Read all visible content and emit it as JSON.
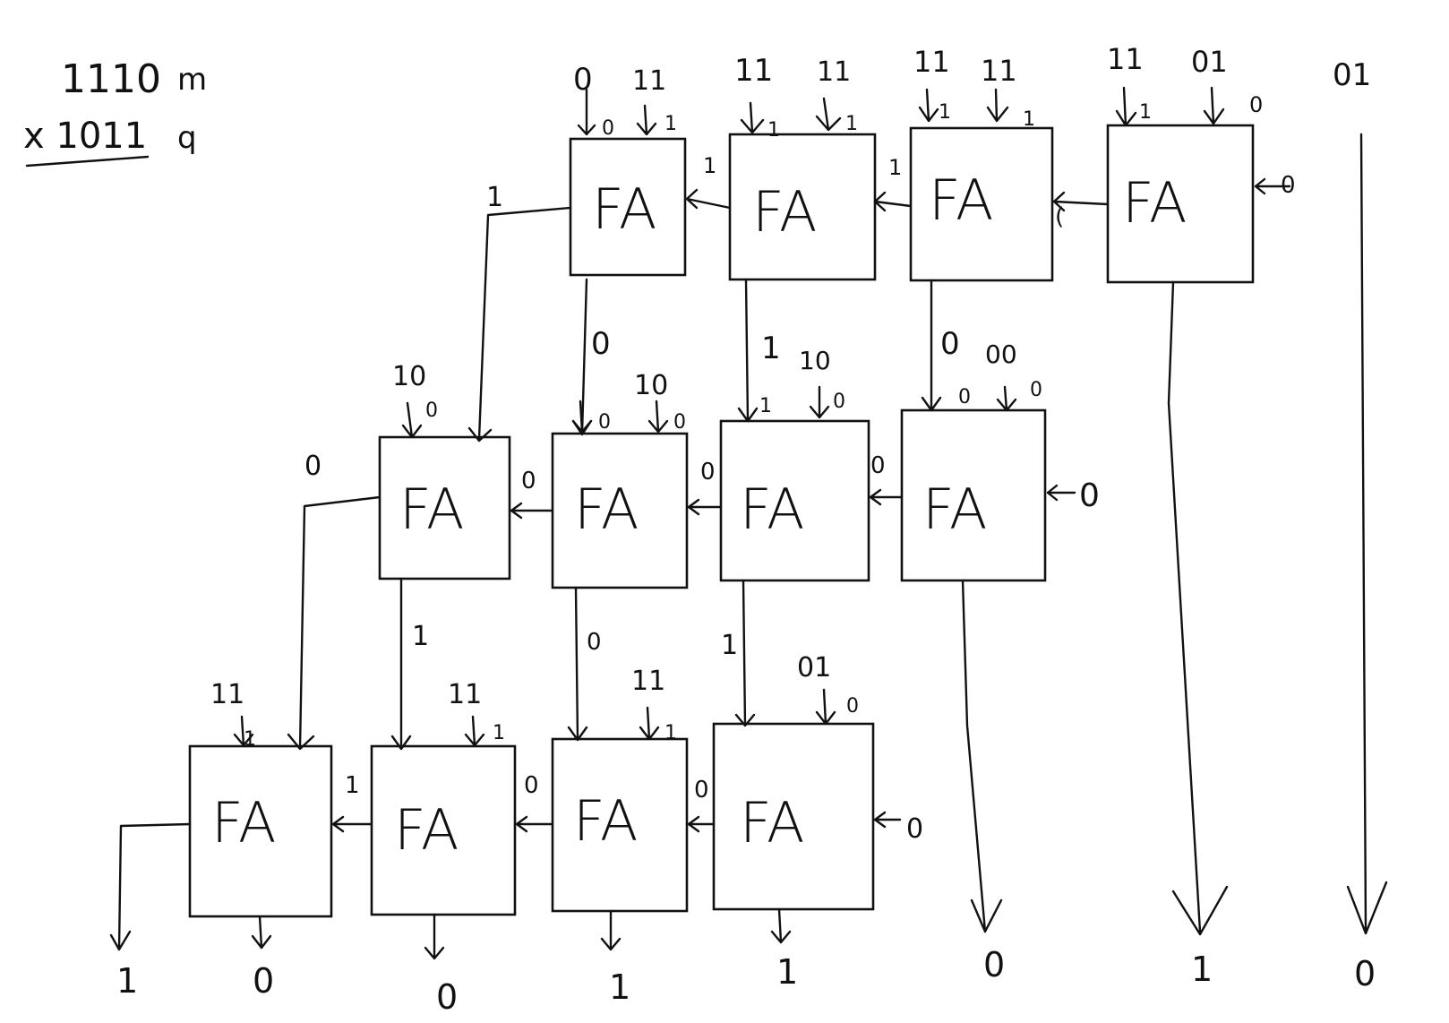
{
  "header": {
    "multiplicand": "1110",
    "multiplicand_tag": "m",
    "multiplier": "x 1011",
    "multiplier_tag": "q"
  },
  "fa_label": "FA",
  "row1": {
    "cells": [
      {
        "in_a": "0",
        "in_b": "11",
        "bit_a": "0",
        "bit_b": "1",
        "carry_in": "1",
        "sum": "0"
      },
      {
        "in_a": "11",
        "in_b": "11",
        "bit_a": "1",
        "bit_b": "1",
        "carry_in": "1",
        "sum": "1"
      },
      {
        "in_a": "11",
        "in_b": "11",
        "bit_a": "1",
        "bit_b": "1",
        "carry_in": "(",
        "sum": "0"
      },
      {
        "in_a": "11",
        "in_b": "01",
        "bit_a": "1",
        "bit_b": "0",
        "carry_in": "0",
        "sum": ""
      }
    ],
    "carry_out": "1",
    "passthrough": "01"
  },
  "row2": {
    "cells": [
      {
        "in_a": "10",
        "in_b": "",
        "bit_a": "0",
        "bit_b": "",
        "carry_in": "0",
        "sum": "1"
      },
      {
        "in_a": "",
        "in_b": "10",
        "bit_a": "0",
        "bit_b": "0",
        "carry_in": "0",
        "sum": "0"
      },
      {
        "in_a": "",
        "in_b": "10",
        "bit_a": "1",
        "bit_b": "0",
        "carry_in": "0",
        "sum": "1"
      },
      {
        "in_a": "",
        "in_b": "00",
        "bit_a": "0",
        "bit_b": "0",
        "carry_in": "0",
        "sum": ""
      }
    ],
    "carry_out": "0"
  },
  "row3": {
    "cells": [
      {
        "in_a": "",
        "in_b": "11",
        "bit_a": "",
        "bit_b": "1",
        "carry_in": "1"
      },
      {
        "in_a": "",
        "in_b": "11",
        "bit_a": "",
        "bit_b": "1",
        "carry_in": "0"
      },
      {
        "in_a": "",
        "in_b": "11",
        "bit_a": "",
        "bit_b": "1",
        "carry_in": "0"
      },
      {
        "in_a": "",
        "in_b": "01",
        "bit_a": "",
        "bit_b": "0",
        "carry_in": "0"
      }
    ]
  },
  "result_bits": [
    "1",
    "0",
    "0",
    "1",
    "1",
    "0",
    "1",
    "0"
  ]
}
